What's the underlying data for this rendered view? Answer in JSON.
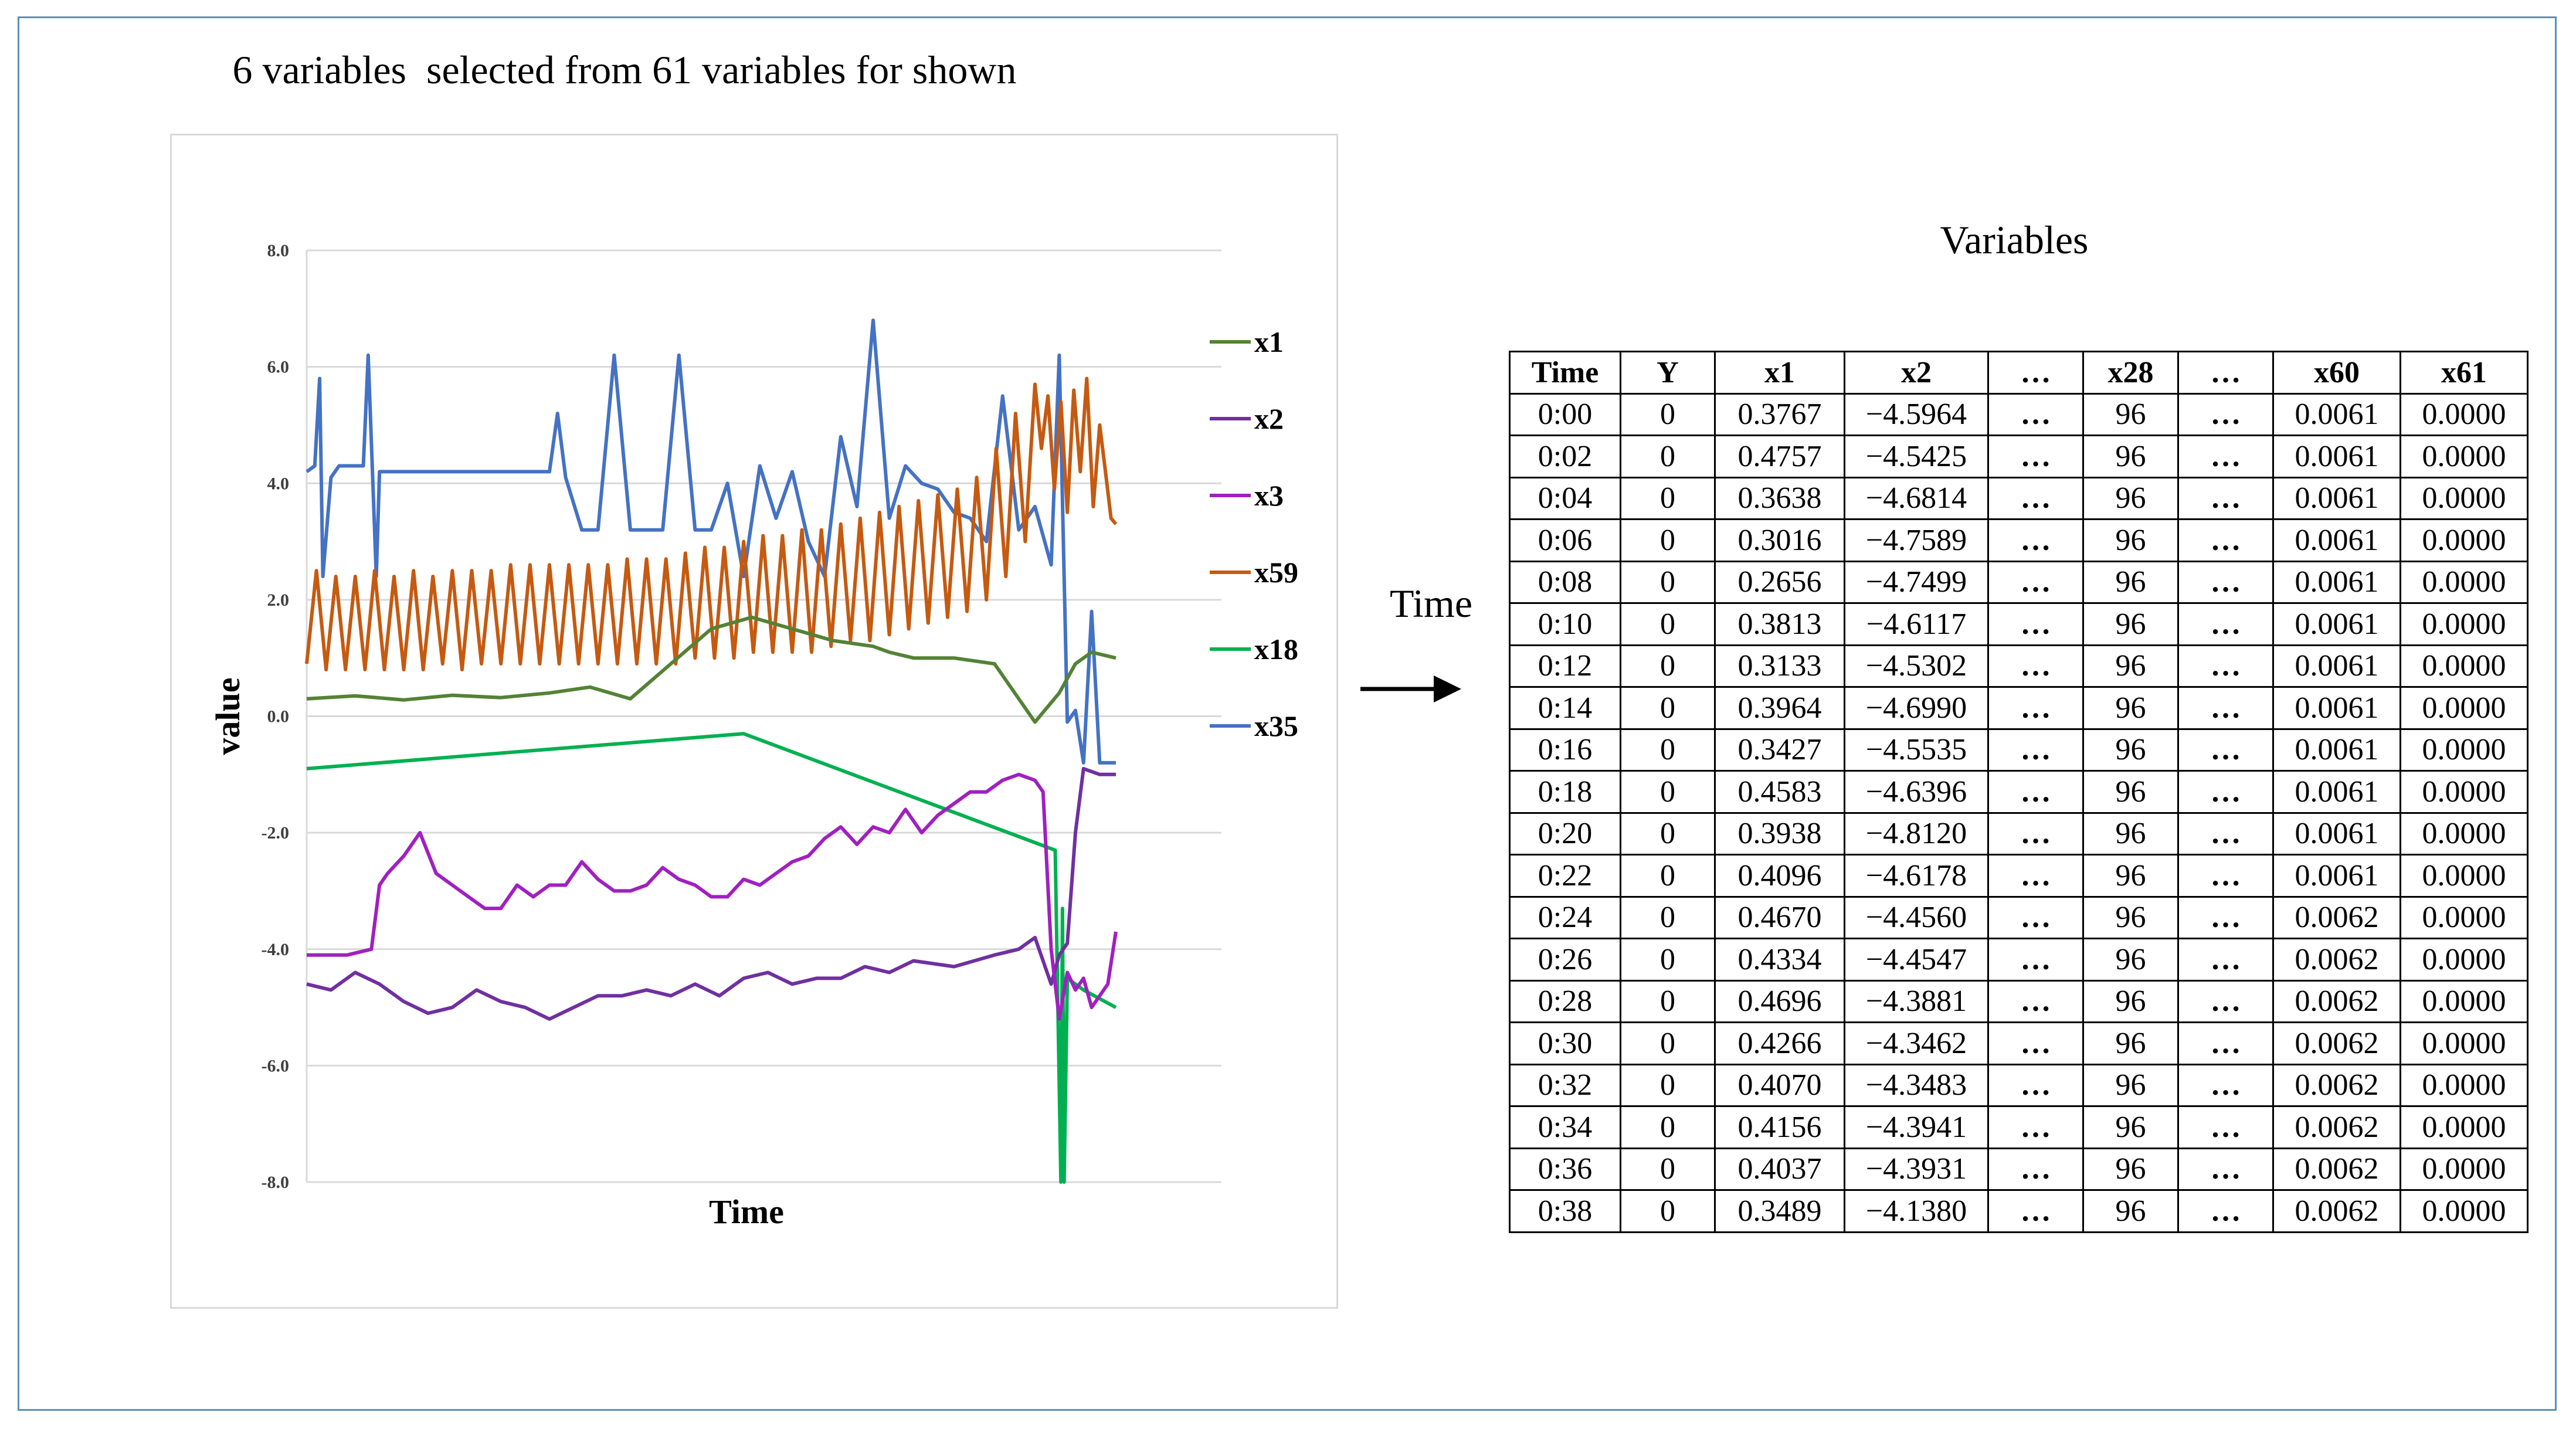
{
  "main_title": "6 variables  selected from 61 variables for shown",
  "mid_label": "Time",
  "arrow_icon": "right-arrow-icon",
  "chart_data": {
    "type": "line",
    "xlabel": "Time",
    "ylabel": "value",
    "ylim": [
      -8,
      8
    ],
    "yticks": [
      "8.0",
      "6.0",
      "4.0",
      "2.0",
      "0.0",
      "-2.0",
      "-4.0",
      "-6.0",
      "-8.0"
    ],
    "grid": "horizontal",
    "legend_position": "right",
    "series": [
      {
        "name": "x1",
        "color": "#548235",
        "x": [
          0,
          6,
          12,
          18,
          24,
          30,
          35,
          40,
          45,
          50,
          55,
          60,
          65,
          70,
          72,
          75,
          80,
          85,
          90,
          93,
          95,
          97,
          100
        ],
        "values": [
          0.3,
          0.35,
          0.28,
          0.36,
          0.32,
          0.4,
          0.5,
          0.3,
          0.9,
          1.5,
          1.7,
          1.5,
          1.3,
          1.2,
          1.1,
          1.0,
          1.0,
          0.9,
          -0.1,
          0.4,
          0.9,
          1.1,
          1.0
        ]
      },
      {
        "name": "x2",
        "color": "#7030a0",
        "x": [
          0,
          3,
          6,
          9,
          12,
          15,
          18,
          21,
          24,
          27,
          30,
          33,
          36,
          39,
          42,
          45,
          48,
          51,
          54,
          57,
          60,
          63,
          66,
          69,
          72,
          75,
          80,
          85,
          88,
          90,
          91,
          92,
          93,
          94,
          95,
          96,
          98,
          100
        ],
        "values": [
          -4.6,
          -4.7,
          -4.4,
          -4.6,
          -4.9,
          -5.1,
          -5.0,
          -4.7,
          -4.9,
          -5.0,
          -5.2,
          -5.0,
          -4.8,
          -4.8,
          -4.7,
          -4.8,
          -4.6,
          -4.8,
          -4.5,
          -4.4,
          -4.6,
          -4.5,
          -4.5,
          -4.3,
          -4.4,
          -4.2,
          -4.3,
          -4.1,
          -4.0,
          -3.8,
          -4.2,
          -4.6,
          -4.1,
          -3.9,
          -2.0,
          -0.9,
          -1.0,
          -1.0
        ]
      },
      {
        "name": "x3",
        "color": "#a020c0",
        "x": [
          0,
          5,
          8,
          9,
          10,
          12,
          14,
          16,
          18,
          20,
          22,
          24,
          26,
          28,
          30,
          32,
          34,
          36,
          38,
          40,
          42,
          44,
          46,
          48,
          50,
          52,
          54,
          56,
          58,
          60,
          62,
          64,
          66,
          68,
          70,
          72,
          74,
          76,
          78,
          80,
          82,
          84,
          86,
          88,
          90,
          91,
          92,
          93,
          94,
          95,
          96,
          97,
          98,
          99,
          100
        ],
        "values": [
          -4.1,
          -4.1,
          -4.0,
          -2.9,
          -2.7,
          -2.4,
          -2.0,
          -2.7,
          -2.9,
          -3.1,
          -3.3,
          -3.3,
          -2.9,
          -3.1,
          -2.9,
          -2.9,
          -2.5,
          -2.8,
          -3.0,
          -3.0,
          -2.9,
          -2.6,
          -2.8,
          -2.9,
          -3.1,
          -3.1,
          -2.8,
          -2.9,
          -2.7,
          -2.5,
          -2.4,
          -2.1,
          -1.9,
          -2.2,
          -1.9,
          -2.0,
          -1.6,
          -2.0,
          -1.7,
          -1.5,
          -1.3,
          -1.3,
          -1.1,
          -1.0,
          -1.1,
          -1.3,
          -4.0,
          -5.2,
          -4.4,
          -4.7,
          -4.5,
          -5.0,
          -4.8,
          -4.6,
          -3.7
        ]
      },
      {
        "name": "x59",
        "color": "#c55a11",
        "x": [
          0,
          1.2,
          2.4,
          3.6,
          4.8,
          6,
          7.2,
          8.4,
          9.6,
          10.8,
          12,
          13.2,
          14.4,
          15.6,
          16.8,
          18,
          19.2,
          20.4,
          21.6,
          22.8,
          24,
          25.2,
          26.4,
          27.6,
          28.8,
          30,
          31.2,
          32.4,
          33.6,
          34.8,
          36,
          37.2,
          38.4,
          39.6,
          40.8,
          42,
          43.2,
          44.4,
          45.6,
          46.8,
          48,
          49.2,
          50.4,
          51.6,
          52.8,
          54,
          55.2,
          56.4,
          57.6,
          58.8,
          60,
          61.2,
          62.4,
          63.6,
          64.8,
          66,
          67.2,
          68.4,
          69.6,
          70.8,
          72,
          73.2,
          74.4,
          75.6,
          76.8,
          78,
          79.2,
          80.4,
          81.6,
          82.8,
          84,
          85.2,
          86.4,
          87.6,
          88.8,
          90,
          90.8,
          91.6,
          92.4,
          93.2,
          94,
          94.8,
          95.6,
          96.4,
          97.2,
          98,
          98.8,
          99.4,
          100
        ],
        "values": [
          0.9,
          2.5,
          0.8,
          2.4,
          0.8,
          2.4,
          0.8,
          2.5,
          0.8,
          2.4,
          0.8,
          2.5,
          0.8,
          2.4,
          0.9,
          2.5,
          0.8,
          2.5,
          0.9,
          2.5,
          0.9,
          2.6,
          0.9,
          2.6,
          0.9,
          2.6,
          0.9,
          2.6,
          0.9,
          2.6,
          0.9,
          2.6,
          0.9,
          2.7,
          0.9,
          2.7,
          0.9,
          2.7,
          0.9,
          2.8,
          1.0,
          2.9,
          1.0,
          2.9,
          1.0,
          3.0,
          1.1,
          3.1,
          1.1,
          3.1,
          1.1,
          3.2,
          1.1,
          3.2,
          1.2,
          3.3,
          1.3,
          3.4,
          1.3,
          3.5,
          1.4,
          3.6,
          1.5,
          3.7,
          1.6,
          3.8,
          1.7,
          3.9,
          1.8,
          4.1,
          2.0,
          4.6,
          2.4,
          5.2,
          3.0,
          5.7,
          4.6,
          5.5,
          3.9,
          5.4,
          3.5,
          5.6,
          4.2,
          5.8,
          3.6,
          5.0,
          4.1,
          3.4,
          3.3
        ]
      },
      {
        "name": "x18",
        "color": "#00b050",
        "x": [
          0,
          54,
          92.5,
          93.2,
          93.4,
          93.6,
          94,
          96,
          100
        ],
        "values": [
          -0.9,
          -0.3,
          -2.3,
          -8.0,
          -3.3,
          -8.0,
          -4.5,
          -4.7,
          -5.0
        ]
      },
      {
        "name": "x35",
        "color": "#4472c4",
        "x": [
          0,
          1,
          1.6,
          2,
          3,
          4,
          6,
          7,
          7.6,
          8.6,
          9,
          10,
          12,
          14,
          16,
          18,
          20,
          22,
          24,
          26,
          28,
          30,
          31,
          32,
          34,
          36,
          38,
          40,
          42,
          44,
          46,
          48,
          50,
          52,
          54,
          56,
          58,
          60,
          62,
          64,
          66,
          68,
          70,
          72,
          74,
          76,
          78,
          80,
          82,
          84,
          86,
          88,
          90,
          92,
          93,
          94,
          95,
          96,
          97,
          98,
          99,
          100
        ],
        "values": [
          4.2,
          4.3,
          5.8,
          2.4,
          4.1,
          4.3,
          4.3,
          4.3,
          6.2,
          2.4,
          4.2,
          4.2,
          4.2,
          4.2,
          4.2,
          4.2,
          4.2,
          4.2,
          4.2,
          4.2,
          4.2,
          4.2,
          5.2,
          4.1,
          3.2,
          3.2,
          6.2,
          3.2,
          3.2,
          3.2,
          6.2,
          3.2,
          3.2,
          4.0,
          2.4,
          4.3,
          3.4,
          4.2,
          3.0,
          2.4,
          4.8,
          3.6,
          6.8,
          3.4,
          4.3,
          4.0,
          3.9,
          3.5,
          3.4,
          3.0,
          5.5,
          3.2,
          3.6,
          2.6,
          6.2,
          -0.1,
          0.1,
          -0.8,
          1.8,
          -0.8,
          -0.8,
          -0.8
        ]
      }
    ]
  },
  "table": {
    "title": "Variables",
    "headers": [
      "Time",
      "Y",
      "x1",
      "x2",
      "…",
      "x28",
      "…",
      "x60",
      "x61"
    ],
    "rows": [
      [
        "0:00",
        "0",
        "0.3767",
        "−4.5964",
        "…",
        "96",
        "…",
        "0.0061",
        "0.0000"
      ],
      [
        "0:02",
        "0",
        "0.4757",
        "−4.5425",
        "…",
        "96",
        "…",
        "0.0061",
        "0.0000"
      ],
      [
        "0:04",
        "0",
        "0.3638",
        "−4.6814",
        "…",
        "96",
        "…",
        "0.0061",
        "0.0000"
      ],
      [
        "0:06",
        "0",
        "0.3016",
        "−4.7589",
        "…",
        "96",
        "…",
        "0.0061",
        "0.0000"
      ],
      [
        "0:08",
        "0",
        "0.2656",
        "−4.7499",
        "…",
        "96",
        "…",
        "0.0061",
        "0.0000"
      ],
      [
        "0:10",
        "0",
        "0.3813",
        "−4.6117",
        "…",
        "96",
        "…",
        "0.0061",
        "0.0000"
      ],
      [
        "0:12",
        "0",
        "0.3133",
        "−4.5302",
        "…",
        "96",
        "…",
        "0.0061",
        "0.0000"
      ],
      [
        "0:14",
        "0",
        "0.3964",
        "−4.6990",
        "…",
        "96",
        "…",
        "0.0061",
        "0.0000"
      ],
      [
        "0:16",
        "0",
        "0.3427",
        "−4.5535",
        "…",
        "96",
        "…",
        "0.0061",
        "0.0000"
      ],
      [
        "0:18",
        "0",
        "0.4583",
        "−4.6396",
        "…",
        "96",
        "…",
        "0.0061",
        "0.0000"
      ],
      [
        "0:20",
        "0",
        "0.3938",
        "−4.8120",
        "…",
        "96",
        "…",
        "0.0061",
        "0.0000"
      ],
      [
        "0:22",
        "0",
        "0.4096",
        "−4.6178",
        "…",
        "96",
        "…",
        "0.0061",
        "0.0000"
      ],
      [
        "0:24",
        "0",
        "0.4670",
        "−4.4560",
        "…",
        "96",
        "…",
        "0.0062",
        "0.0000"
      ],
      [
        "0:26",
        "0",
        "0.4334",
        "−4.4547",
        "…",
        "96",
        "…",
        "0.0062",
        "0.0000"
      ],
      [
        "0:28",
        "0",
        "0.4696",
        "−4.3881",
        "…",
        "96",
        "…",
        "0.0062",
        "0.0000"
      ],
      [
        "0:30",
        "0",
        "0.4266",
        "−4.3462",
        "…",
        "96",
        "…",
        "0.0062",
        "0.0000"
      ],
      [
        "0:32",
        "0",
        "0.4070",
        "−4.3483",
        "…",
        "96",
        "…",
        "0.0062",
        "0.0000"
      ],
      [
        "0:34",
        "0",
        "0.4156",
        "−4.3941",
        "…",
        "96",
        "…",
        "0.0062",
        "0.0000"
      ],
      [
        "0:36",
        "0",
        "0.4037",
        "−4.3931",
        "…",
        "96",
        "…",
        "0.0062",
        "0.0000"
      ],
      [
        "0:38",
        "0",
        "0.3489",
        "−4.1380",
        "…",
        "96",
        "…",
        "0.0062",
        "0.0000"
      ]
    ]
  }
}
